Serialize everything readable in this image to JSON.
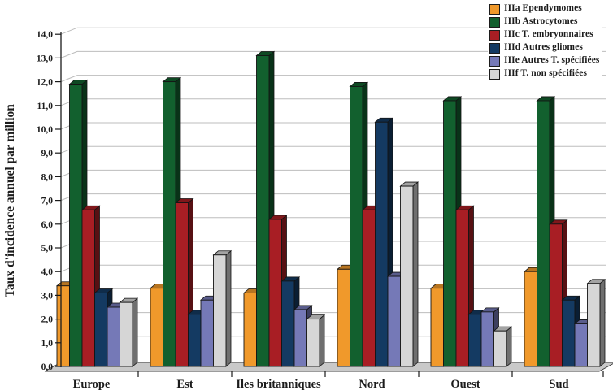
{
  "background": "#ffffff",
  "axis_color": "#1a1a1a",
  "gridline_color": "#bdbdbd",
  "floor_color": "#c9c9c9",
  "chart_data": {
    "type": "bar",
    "style": "3d-grouped-bars",
    "title": "",
    "xlabel": "",
    "ylabel": "Taux d'incidence annuel par million",
    "categories": [
      "Europe",
      "Est",
      "Iles britanniques",
      "Nord",
      "Ouest",
      "Sud"
    ],
    "series": [
      {
        "name": "IIIa Ependymomes",
        "color": "#F0992B",
        "values": [
          3.4,
          3.3,
          3.1,
          4.1,
          3.3,
          4.0
        ]
      },
      {
        "name": "IIIb Astrocytomes",
        "color": "#12602E",
        "values": [
          11.9,
          12.0,
          13.1,
          11.8,
          11.2,
          11.2
        ]
      },
      {
        "name": "IIIc T. embryonnaires",
        "color": "#A81E24",
        "values": [
          6.6,
          6.9,
          6.2,
          6.6,
          6.6,
          6.0
        ]
      },
      {
        "name": "IIId Autres gliomes",
        "color": "#143A62",
        "values": [
          3.1,
          2.2,
          3.6,
          10.3,
          2.2,
          2.8
        ]
      },
      {
        "name": "IIIe Autres T. spécifiées",
        "color": "#7579B7",
        "values": [
          2.5,
          2.8,
          2.4,
          3.8,
          2.3,
          1.8
        ]
      },
      {
        "name": "IIIf T. non spécifiées",
        "color": "#D6D6D6",
        "values": [
          2.7,
          4.7,
          2.0,
          7.6,
          1.5,
          3.5
        ]
      }
    ],
    "ylim": [
      0,
      14
    ],
    "ytick_step": 1,
    "ytick_labels": [
      "0,0",
      "1,0",
      "2,0",
      "3,0",
      "4,0",
      "5,0",
      "6,0",
      "7,0",
      "8,0",
      "9,0",
      "10,0",
      "11,0",
      "12,0",
      "13,0",
      "14,0"
    ],
    "grid": true,
    "legend_position": "top-right"
  }
}
